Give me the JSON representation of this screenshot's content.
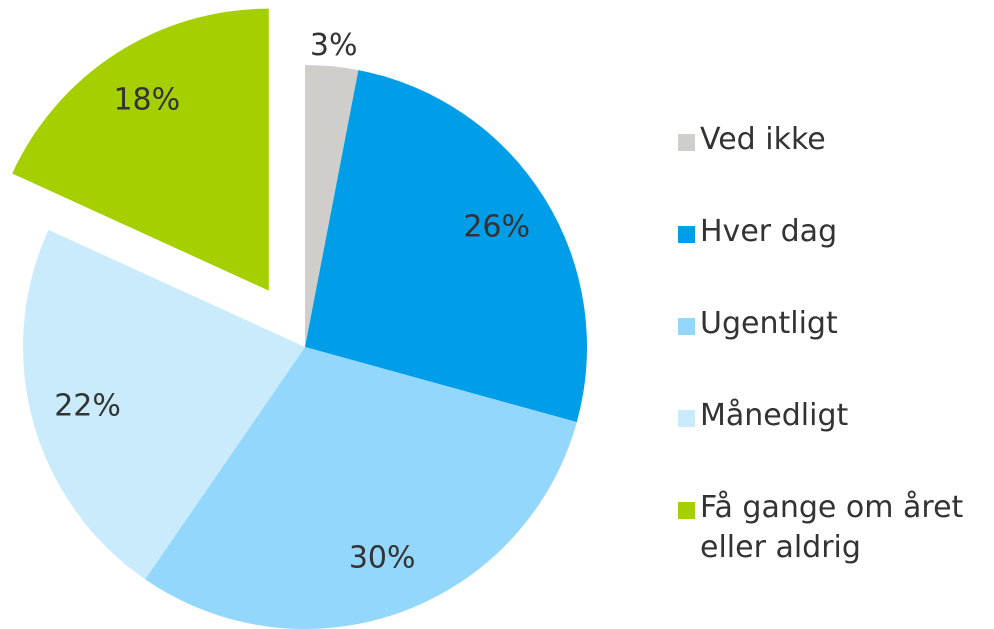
{
  "chart_data": {
    "type": "pie",
    "categories": [
      "Ved ikke",
      "Hver dag",
      "Ugentligt",
      "Månedligt",
      "Få gange om året eller aldrig"
    ],
    "values": [
      3,
      26,
      30,
      22,
      18
    ],
    "value_labels": [
      "3%",
      "26%",
      "30%",
      "22%",
      "18%"
    ],
    "colors": [
      "#d0cecb",
      "#009ee8",
      "#93d8fc",
      "#c9ebfc",
      "#a6cf00"
    ],
    "exploded": [
      false,
      false,
      false,
      false,
      true
    ],
    "legend": "right"
  }
}
